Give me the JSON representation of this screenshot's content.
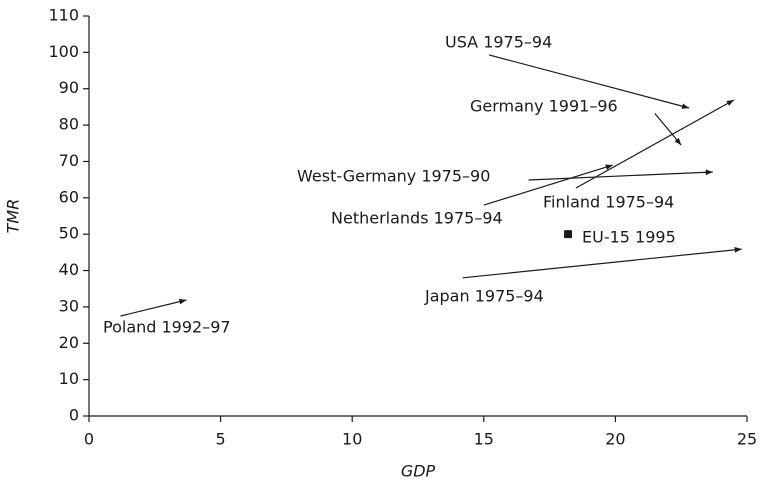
{
  "chart_data": {
    "type": "arrow",
    "xlabel": "GDP",
    "ylabel": "TMR",
    "xlim": [
      0,
      25
    ],
    "xticks": [
      0,
      5,
      10,
      15,
      20,
      25
    ],
    "ylim": [
      0,
      110
    ],
    "yticks": [
      0,
      10,
      20,
      30,
      40,
      50,
      60,
      70,
      80,
      90,
      100,
      110
    ],
    "color": "#1a1a1a",
    "series": [
      {
        "name": "USA 1975–94",
        "x": [
          15.2,
          22.8
        ],
        "y": [
          99.3,
          84.7
        ]
      },
      {
        "name": "Germany 1991–96",
        "x": [
          21.5,
          22.5
        ],
        "y": [
          83.2,
          74.5
        ]
      },
      {
        "name": "West-Germany 1975–90",
        "x": [
          16.7,
          23.7
        ],
        "y": [
          64.9,
          67.1
        ]
      },
      {
        "name": "Netherlands 1975–94",
        "x": [
          15.0,
          19.9
        ],
        "y": [
          58.0,
          69.0
        ]
      },
      {
        "name": "Finland 1975–94",
        "x": [
          18.5,
          24.5
        ],
        "y": [
          62.7,
          86.9
        ]
      },
      {
        "name": "Japan 1975–94",
        "x": [
          14.2,
          24.8
        ],
        "y": [
          38.0,
          45.9
        ]
      },
      {
        "name": "Poland 1992–97",
        "x": [
          1.2,
          3.7
        ],
        "y": [
          27.5,
          31.9
        ]
      }
    ],
    "points": [
      {
        "name": "EU-15 1995",
        "x": 18.2,
        "y": 50.0
      }
    ]
  }
}
